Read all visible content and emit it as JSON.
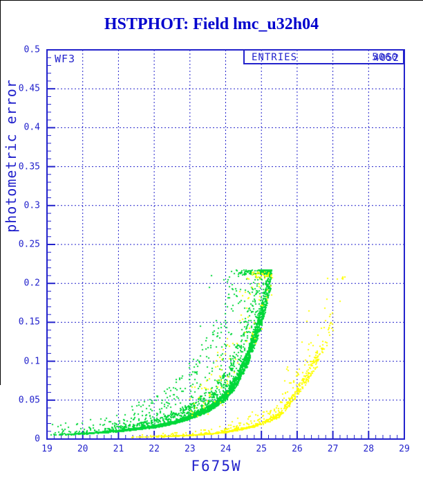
{
  "header": {
    "title": "HSTPHOT: Field lmc_u32h04"
  },
  "plot": {
    "chip_label": "WF3",
    "stats_box": {
      "label": "ENTRIES",
      "values": [
        "5060",
        "4052"
      ]
    },
    "colors": {
      "axis_blue": "#2222cc",
      "title_blue": "#0000cd",
      "grid_blue": "#2222cc",
      "series_green": "#00d839",
      "series_yellow": "#ffff00",
      "background": "#ffffff",
      "window_border": "#000000"
    }
  },
  "chart_data": {
    "type": "scatter",
    "title": "HSTPHOT: Field lmc_u32h04",
    "xlabel": "F675W",
    "ylabel": "photometric error",
    "xlim": [
      19,
      29
    ],
    "ylim": [
      0,
      0.5
    ],
    "x_major_step": 1,
    "x_minor_step": 0.2,
    "y_major_step": 0.05,
    "y_minor_step": 0.01,
    "grid": "dashed blue gridlines at every major tick",
    "x_tick_labels": [
      "19",
      "20",
      "21",
      "22",
      "23",
      "24",
      "25",
      "26",
      "27",
      "28",
      "29"
    ],
    "x_tick_values": [
      19,
      20,
      21,
      22,
      23,
      24,
      25,
      26,
      27,
      28,
      29
    ],
    "y_tick_labels": [
      "0",
      "0.05",
      "0.1",
      "0.15",
      "0.2",
      "0.25",
      "0.3",
      "0.35",
      "0.4",
      "0.45",
      "0.5"
    ],
    "y_tick_values": [
      0,
      0.05,
      0.1,
      0.15,
      0.2,
      0.25,
      0.3,
      0.35,
      0.4,
      0.45,
      0.5
    ],
    "marker_px": 2,
    "annotations": [
      {
        "text": "WF3",
        "position": "top-left inside frame"
      },
      {
        "text": "ENTRIES",
        "values_overprinted": [
          "5060",
          "4052"
        ],
        "position": "top-right stat box"
      }
    ],
    "series": [
      {
        "name": "green-points",
        "color": "#00d839",
        "x_range": [
          19.0,
          25.27
        ],
        "locus": {
          "x": [
            19,
            20,
            21,
            22,
            22.5,
            23,
            23.5,
            24,
            24.3,
            24.6,
            24.9,
            25.05,
            25.15,
            25.22,
            25.27
          ],
          "y": [
            0.005,
            0.0065,
            0.01,
            0.0155,
            0.02,
            0.027,
            0.037,
            0.053,
            0.072,
            0.1,
            0.14,
            0.163,
            0.182,
            0.198,
            0.212
          ]
        },
        "scatter": {
          "n": 3900,
          "x_exponent": 0.48,
          "x_jitter": 0.035,
          "core_frac": 0.72,
          "mid_frac": 0.18,
          "spread_core": [
            0.93,
            1.12
          ],
          "spread_mid": [
            1.05,
            1.65
          ],
          "spread_tail": [
            1.3,
            3.6
          ],
          "e_max": 0.2175,
          "e_min": 0.003
        },
        "extra_points": [
          [
            23.55,
            0.195
          ],
          [
            23.6,
            0.21
          ],
          [
            23.95,
            0.205
          ],
          [
            24.05,
            0.17
          ],
          [
            23.3,
            0.145
          ],
          [
            24.3,
            0.19
          ]
        ]
      },
      {
        "name": "yellow-points",
        "color": "#ffff00",
        "x_range": [
          21.3,
          27.35
        ],
        "locus": {
          "x": [
            21.3,
            22.0,
            22.5,
            23.0,
            23.5,
            24.0,
            24.5,
            25.0,
            25.5,
            25.85,
            26.2,
            26.55,
            26.8,
            27.0,
            27.15,
            27.3
          ],
          "y": [
            0.0022,
            0.003,
            0.0036,
            0.0046,
            0.0062,
            0.009,
            0.013,
            0.019,
            0.03,
            0.05,
            0.072,
            0.1,
            0.128,
            0.154,
            0.178,
            0.205
          ]
        },
        "scatter": {
          "n": 980,
          "x_exponent": 0.62,
          "x_jitter": 0.04,
          "core_frac": 0.8,
          "mid_frac": 0.13,
          "spread_core": [
            0.92,
            1.12
          ],
          "spread_mid": [
            1.05,
            1.5
          ],
          "spread_tail": [
            1.2,
            2.3
          ],
          "e_max": 0.21,
          "e_min": 0.002,
          "thin": [
            [
              26.6,
              0.35
            ],
            [
              27.0,
              0.12
            ]
          ]
        },
        "extra_cloud": {
          "n": 130,
          "x_range": [
            22.8,
            25.3
          ],
          "x_exponent": 0.6,
          "factor_range": [
            0.85,
            2.4
          ],
          "e_max": 0.215,
          "e_min": 0.004,
          "follows_locus_of": "green-points"
        }
      }
    ]
  }
}
